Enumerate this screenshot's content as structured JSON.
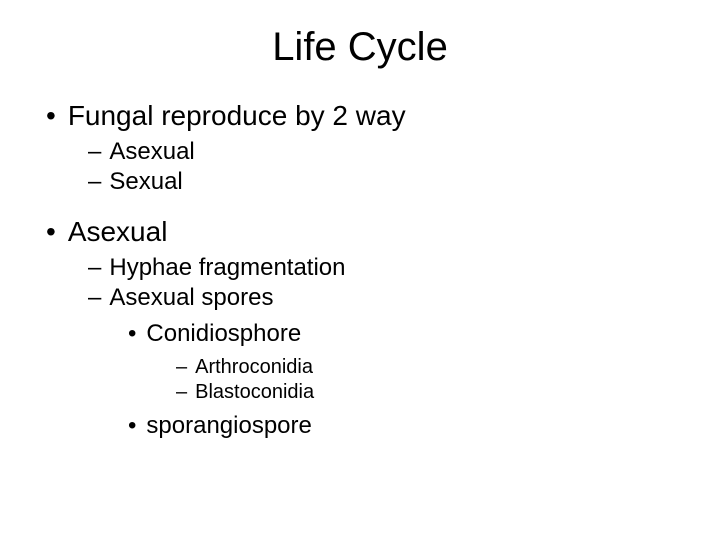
{
  "title": "Life Cycle",
  "items": {
    "l1_1": "Fungal reproduce by 2 way",
    "l2_1": "Asexual",
    "l2_2": "Sexual",
    "l1_2": "Asexual",
    "l2_3": "Hyphae fragmentation",
    "l2_4": "Asexual spores",
    "l3_1": "Conidiosphore",
    "l4_1": "Arthroconidia",
    "l4_2": "Blastoconidia",
    "l3_2": "sporangiospore"
  },
  "bullets": {
    "dot": "•",
    "dash": "–"
  },
  "colors": {
    "background": "#ffffff",
    "text": "#000000"
  },
  "typography": {
    "title_fontsize": 40,
    "l1_fontsize": 28,
    "l2_fontsize": 24,
    "l3_fontsize": 24,
    "l4_fontsize": 20,
    "font_family": "Arial"
  }
}
